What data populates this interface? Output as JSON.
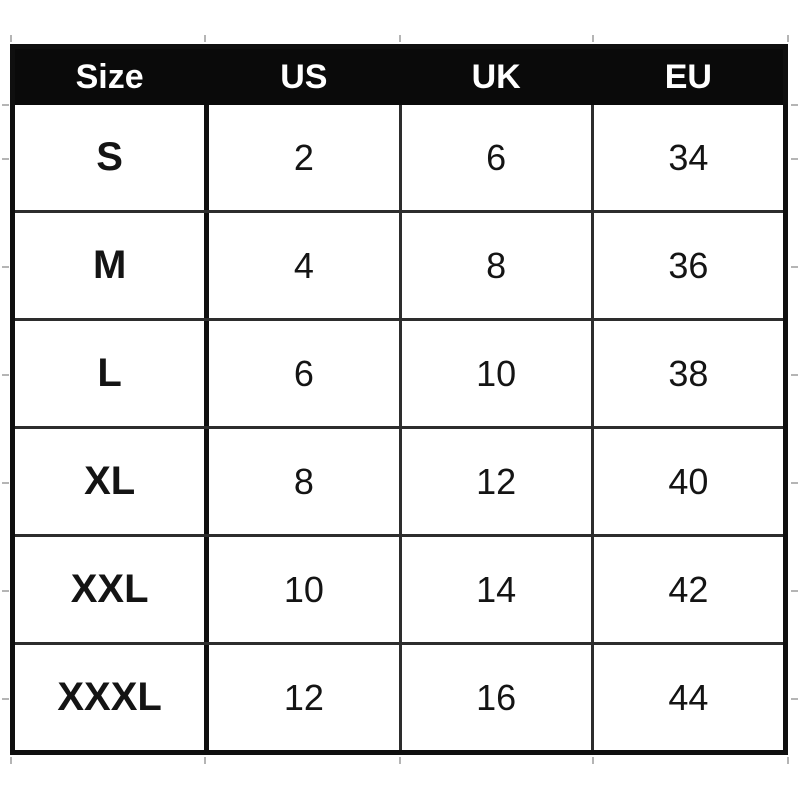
{
  "table": {
    "columns": [
      "Size",
      "US",
      "UK",
      "EU"
    ],
    "rows": [
      [
        "S",
        "2",
        "6",
        "34"
      ],
      [
        "M",
        "4",
        "8",
        "36"
      ],
      [
        "L",
        "6",
        "10",
        "38"
      ],
      [
        "XL",
        "8",
        "12",
        "40"
      ],
      [
        "XXL",
        "10",
        "14",
        "42"
      ],
      [
        "XXXL",
        "12",
        "16",
        "44"
      ]
    ]
  },
  "chart_data": {
    "type": "table",
    "title": "",
    "columns": [
      "Size",
      "US",
      "UK",
      "EU"
    ],
    "rows": [
      {
        "size": "S",
        "us": 2,
        "uk": 6,
        "eu": 34
      },
      {
        "size": "M",
        "us": 4,
        "uk": 8,
        "eu": 36
      },
      {
        "size": "L",
        "us": 6,
        "uk": 10,
        "eu": 38
      },
      {
        "size": "XL",
        "us": 8,
        "uk": 12,
        "eu": 40
      },
      {
        "size": "XXL",
        "us": 10,
        "uk": 14,
        "eu": 42
      },
      {
        "size": "XXXL",
        "us": 12,
        "uk": 16,
        "eu": 44
      }
    ],
    "layout": {
      "header_style": "white bold text on black band",
      "grid": "thick black outer border and first-column divider, thin dark inner gridlines"
    }
  },
  "colors": {
    "page_bg": "#ffffff",
    "header_bg": "#0a0a0a",
    "header_text": "#ffffff",
    "outer_border": "#0f0f0f",
    "grid_line": "#2d2d2d",
    "cell_bg": "#ffffff",
    "body_text": "#141414",
    "tick": "#b5b5b5"
  }
}
